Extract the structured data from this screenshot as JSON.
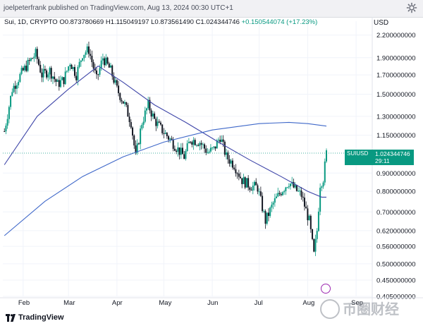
{
  "header": {
    "publish_text": "joelpeterfrank published on TradingView.com, Aug 13, 2024 00:30 UTC+1"
  },
  "legend": {
    "symbol": "Sui, 1D, CRYPTO",
    "open": "O0.873780669",
    "high": "H1.115049197",
    "low": "L0.873561490",
    "close": "C1.024344746",
    "change": "+0.150544074 (+17.23%)"
  },
  "axis": {
    "currency": "USD",
    "price_labels": [
      "2.200000000",
      "1.900000000",
      "1.700000000",
      "1.500000000",
      "1.300000000",
      "1.150000000",
      "0.900000000",
      "0.800000000",
      "0.700000000",
      "0.620000000",
      "0.560000000",
      "0.500000000",
      "0.450000000",
      "0.405000000"
    ],
    "month_labels": [
      "Feb",
      "Mar",
      "Apr",
      "May",
      "Jun",
      "Jul",
      "Aug",
      "Sep"
    ]
  },
  "price_tag": {
    "symbol": "SUIUSD",
    "countdown": "29:11",
    "price": "1.024344746"
  },
  "footer": {
    "brand": "TradingView"
  },
  "watermark": {
    "text": "币圈财经"
  },
  "colors": {
    "up": "#089981",
    "down": "#131722",
    "ma_short": "#3e45a8",
    "ma_long": "#3f68c9",
    "last_price_line": "#089981"
  },
  "chart_data": {
    "type": "candlestick",
    "symbol": "SUIUSD",
    "timeframe": "1D",
    "scale": "log",
    "ylim": [
      0.405,
      2.3
    ],
    "x_range": [
      "2024-01-19",
      "2024-08-13"
    ],
    "price_path": [
      [
        "2024-01-20",
        1.18
      ],
      [
        "2024-01-25",
        1.55
      ],
      [
        "2024-01-31",
        1.72
      ],
      [
        "2024-02-05",
        1.85
      ],
      [
        "2024-02-09",
        1.95
      ],
      [
        "2024-02-13",
        1.7
      ],
      [
        "2024-02-18",
        1.75
      ],
      [
        "2024-02-23",
        1.6
      ],
      [
        "2024-02-27",
        1.65
      ],
      [
        "2024-03-02",
        1.85
      ],
      [
        "2024-03-06",
        1.7
      ],
      [
        "2024-03-10",
        1.95
      ],
      [
        "2024-03-14",
        2.0
      ],
      [
        "2024-03-19",
        1.65
      ],
      [
        "2024-03-23",
        1.9
      ],
      [
        "2024-03-28",
        1.75
      ],
      [
        "2024-04-01",
        1.55
      ],
      [
        "2024-04-06",
        1.4
      ],
      [
        "2024-04-10",
        1.25
      ],
      [
        "2024-04-13",
        1.0
      ],
      [
        "2024-04-17",
        1.25
      ],
      [
        "2024-04-21",
        1.4
      ],
      [
        "2024-04-25",
        1.27
      ],
      [
        "2024-04-29",
        1.2
      ],
      [
        "2024-05-05",
        1.12
      ],
      [
        "2024-05-10",
        1.05
      ],
      [
        "2024-05-14",
        1.0
      ],
      [
        "2024-05-18",
        1.12
      ],
      [
        "2024-05-24",
        1.1
      ],
      [
        "2024-05-29",
        1.03
      ],
      [
        "2024-06-02",
        1.05
      ],
      [
        "2024-06-06",
        1.14
      ],
      [
        "2024-06-10",
        1.0
      ],
      [
        "2024-06-15",
        0.95
      ],
      [
        "2024-06-20",
        0.86
      ],
      [
        "2024-06-25",
        0.83
      ],
      [
        "2024-06-30",
        0.82
      ],
      [
        "2024-07-05",
        0.66
      ],
      [
        "2024-07-10",
        0.74
      ],
      [
        "2024-07-15",
        0.8
      ],
      [
        "2024-07-20",
        0.85
      ],
      [
        "2024-07-24",
        0.81
      ],
      [
        "2024-07-28",
        0.78
      ],
      [
        "2024-08-02",
        0.66
      ],
      [
        "2024-08-05",
        0.53
      ],
      [
        "2024-08-07",
        0.62
      ],
      [
        "2024-08-09",
        0.84
      ],
      [
        "2024-08-11",
        0.87
      ],
      [
        "2024-08-13",
        1.024
      ]
    ],
    "ma_short": [
      [
        "2024-01-20",
        0.95
      ],
      [
        "2024-02-10",
        1.3
      ],
      [
        "2024-03-01",
        1.55
      ],
      [
        "2024-03-20",
        1.8
      ],
      [
        "2024-04-05",
        1.62
      ],
      [
        "2024-04-25",
        1.4
      ],
      [
        "2024-05-15",
        1.25
      ],
      [
        "2024-06-05",
        1.1
      ],
      [
        "2024-06-25",
        0.98
      ],
      [
        "2024-07-15",
        0.88
      ],
      [
        "2024-08-01",
        0.8
      ],
      [
        "2024-08-10",
        0.77
      ],
      [
        "2024-08-13",
        0.77
      ]
    ],
    "ma_long": [
      [
        "2024-01-20",
        0.6
      ],
      [
        "2024-02-15",
        0.75
      ],
      [
        "2024-03-10",
        0.88
      ],
      [
        "2024-04-05",
        1.0
      ],
      [
        "2024-05-01",
        1.1
      ],
      [
        "2024-06-01",
        1.19
      ],
      [
        "2024-07-01",
        1.24
      ],
      [
        "2024-07-20",
        1.25
      ],
      [
        "2024-08-01",
        1.24
      ],
      [
        "2024-08-13",
        1.22
      ]
    ],
    "last": 1.024344746
  }
}
